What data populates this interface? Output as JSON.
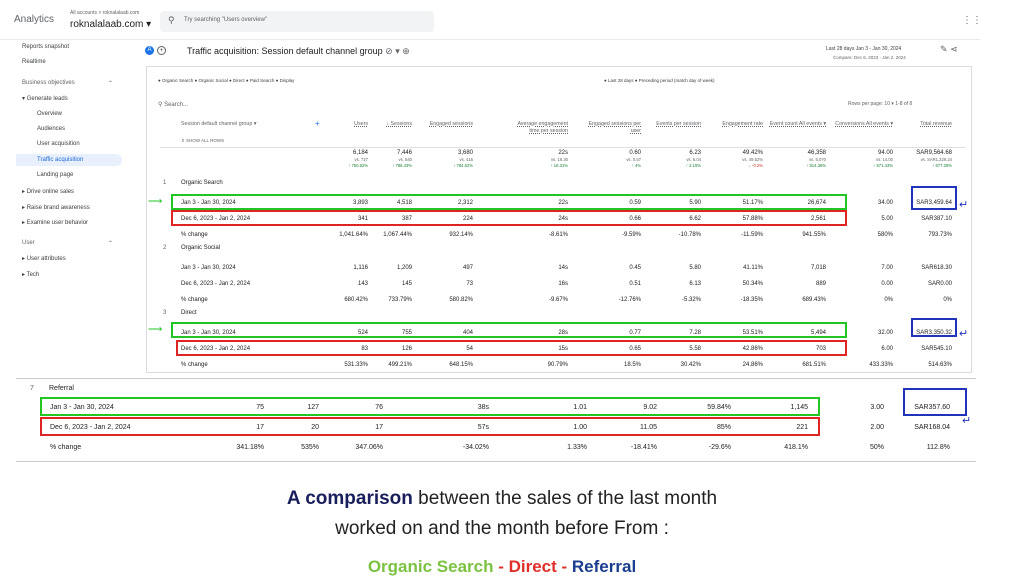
{
  "app": {
    "brand": "Analytics",
    "account_path": "All accounts > roknalalaab.com",
    "account_name": "roknalalaab.com",
    "search_placeholder": "Try searching \"Users overview\"",
    "search_icon": "search-icon",
    "apps_icon": "apps-grid-icon"
  },
  "sidebar": {
    "items": [
      {
        "label": "Reports snapshot"
      },
      {
        "label": "Realtime"
      },
      {
        "label": "Business objectives"
      },
      {
        "label": "Generate leads"
      },
      {
        "label": "Overview"
      },
      {
        "label": "Audiences"
      },
      {
        "label": "User acquisition"
      },
      {
        "label": "Traffic acquisition"
      },
      {
        "label": "Landing page"
      },
      {
        "label": "Drive online sales"
      },
      {
        "label": "Raise brand awareness"
      },
      {
        "label": "Examine user behavior"
      },
      {
        "label": "User"
      },
      {
        "label": "User attributes"
      },
      {
        "label": "Tech"
      }
    ]
  },
  "report": {
    "badge": "A",
    "title": "Traffic acquisition: Session default channel group",
    "date_range": "Last 28 days  Jan 3 - Jan 30, 2024",
    "compare": "Compare: Dec 6, 2023 - Jan 2, 2024",
    "legend_channels": "● Organic Search  ● Organic Social  ● Direct  ● Paid Search  ● Display",
    "legend_periods": "● Last 28 days  ● Preceding period (match day of week)",
    "table_search": "Search...",
    "rows_per_page": "Rows per page:  10  ▾     1-8 of 8",
    "dimension_header": "Session default channel group  ▾",
    "show_all": "SHOW ALL ROWS",
    "columns": [
      "Users",
      "↓ Sessions",
      "Engaged sessions",
      "Average engagement time per session",
      "Engaged sessions per user",
      "Events per session",
      "Engagement rate",
      "Event count All events ▾",
      "Conversions All events ▾",
      "Total revenue"
    ],
    "totals": [
      {
        "v": "6,184",
        "a": "vs. 727",
        "b": "↑ 750.62%"
      },
      {
        "v": "7,446",
        "a": "vs. 540",
        "b": "↑ 786.43%"
      },
      {
        "v": "3,680",
        "a": "vs. 416",
        "b": "↑ 784.62%"
      },
      {
        "v": "22s",
        "a": "vs. 19.30",
        "b": "↑ 18.31%"
      },
      {
        "v": "0.60",
        "a": "vs. 0.57",
        "b": "↑ 4%"
      },
      {
        "v": "6.23",
        "a": "vs. 6.04",
        "b": "↑ 3.15%"
      },
      {
        "v": "49.42%",
        "a": "vs. 49.52%",
        "b": "↓ -0.2%"
      },
      {
        "v": "46,358",
        "a": "vs. 5,070",
        "b": "↑ 814.36%"
      },
      {
        "v": "94.00",
        "a": "vs. 14.00",
        "b": "↑ 571.43%"
      },
      {
        "v": "SAR9,564.68",
        "a": "vs. SAR1,229.24",
        "b": "↑ 677.28%"
      }
    ],
    "groups": [
      {
        "num": "1",
        "name": "Organic Search",
        "rows": [
          {
            "label": "Jan 3 - Jan 30, 2024",
            "cells": [
              "3,893",
              "4,518",
              "2,312",
              "22s",
              "0.59",
              "5.90",
              "51.17%",
              "26,674",
              "34.00",
              "SAR3,459.64"
            ]
          },
          {
            "label": "Dec 6, 2023 - Jan 2, 2024",
            "cells": [
              "341",
              "387",
              "224",
              "24s",
              "0.66",
              "6.62",
              "57.88%",
              "2,561",
              "5.00",
              "SAR387.10"
            ]
          },
          {
            "label": "% change",
            "cells": [
              "1,041.64%",
              "1,067.44%",
              "932.14%",
              "-8.61%",
              "-9.59%",
              "-10.78%",
              "-11.59%",
              "941.55%",
              "580%",
              "793.73%"
            ]
          }
        ]
      },
      {
        "num": "2",
        "name": "Organic Social",
        "rows": [
          {
            "label": "Jan 3 - Jan 30, 2024",
            "cells": [
              "1,116",
              "1,209",
              "497",
              "14s",
              "0.45",
              "5.80",
              "41.11%",
              "7,018",
              "7.00",
              "SAR618.30"
            ]
          },
          {
            "label": "Dec 6, 2023 - Jan 2, 2024",
            "cells": [
              "143",
              "145",
              "73",
              "16s",
              "0.51",
              "6.13",
              "50.34%",
              "889",
              "0.00",
              "SAR0.00"
            ]
          },
          {
            "label": "% change",
            "cells": [
              "680.42%",
              "733.79%",
              "580.82%",
              "-9.67%",
              "-12.76%",
              "-5.32%",
              "-18.35%",
              "689.43%",
              "0%",
              "0%"
            ]
          }
        ]
      },
      {
        "num": "3",
        "name": "Direct",
        "rows": [
          {
            "label": "Jan 3 - Jan 30, 2024",
            "cells": [
              "524",
              "755",
              "404",
              "28s",
              "0.77",
              "7.28",
              "53.51%",
              "5,494",
              "32.00",
              "SAR3,350.32"
            ]
          },
          {
            "label": "Dec 6, 2023 - Jan 2, 2024",
            "cells": [
              "83",
              "126",
              "54",
              "15s",
              "0.65",
              "5.58",
              "42.86%",
              "703",
              "6.00",
              "SAR545.10"
            ]
          },
          {
            "label": "% change",
            "cells": [
              "531.33%",
              "499.21%",
              "648.15%",
              "90.79%",
              "18.5%",
              "30.42%",
              "24.86%",
              "681.51%",
              "433.33%",
              "514.63%"
            ]
          }
        ]
      }
    ]
  },
  "referral": {
    "num": "7",
    "name": "Referral",
    "rows": [
      {
        "label": "Jan 3 - Jan 30, 2024",
        "cells": [
          "75",
          "127",
          "76",
          "38s",
          "1.01",
          "9.02",
          "59.84%",
          "1,145",
          "3.00",
          "SAR357.60"
        ]
      },
      {
        "label": "Dec 6, 2023 - Jan 2, 2024",
        "cells": [
          "17",
          "20",
          "17",
          "57s",
          "1.00",
          "11.05",
          "85%",
          "221",
          "2.00",
          "SAR168.04"
        ]
      },
      {
        "label": "% change",
        "cells": [
          "341.18%",
          "535%",
          "347.06%",
          "-34.02%",
          "1.33%",
          "-18.41%",
          "-29.6%",
          "418.1%",
          "50%",
          "112.8%"
        ]
      }
    ]
  },
  "caption": {
    "bold": "A comparison",
    "line1_rest": " between the sales of the last month",
    "line2": "worked on and the month before From :",
    "organic": "Organic Search",
    "sep": " - ",
    "direct": "Direct",
    "referral": "Referral"
  },
  "colors": {
    "green": "#22c524",
    "red": "#e02424",
    "blue": "#2233bb",
    "caption_green": "#7cc242",
    "caption_red": "#e0302a",
    "caption_blue": "#1b3d8f"
  }
}
